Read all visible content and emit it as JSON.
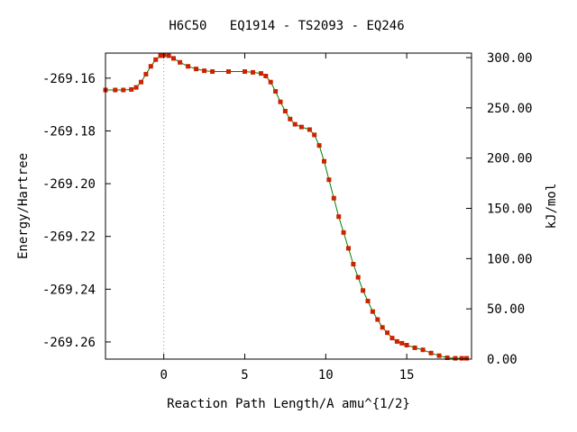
{
  "chart_data": {
    "type": "line",
    "title": "H6C50   EQ1914 - TS2093 - EQ246",
    "xlabel": "Reaction Path Length/A amu^{1/2}",
    "ylabel": "Energy/Hartree",
    "y2label": "kJ/mol",
    "xlim": [
      -3.6,
      19.0
    ],
    "ylim": [
      -269.2665,
      -269.1505
    ],
    "y2lim": [
      0,
      304.5
    ],
    "xticks": [
      0,
      5,
      10,
      15
    ],
    "xtick_labels": [
      "0",
      "5",
      "10",
      "15"
    ],
    "yticks": [
      -269.16,
      -269.18,
      -269.2,
      -269.22,
      -269.24,
      -269.26
    ],
    "ytick_labels": [
      "-269.16",
      "-269.18",
      "-269.20",
      "-269.22",
      "-269.24",
      "-269.26"
    ],
    "y2ticks": [
      0,
      50,
      100,
      150,
      200,
      250,
      300
    ],
    "y2tick_labels": [
      "0.00",
      "50.00",
      "100.00",
      "150.00",
      "200.00",
      "250.00",
      "300.00"
    ],
    "ts_marker_x": 0,
    "grid": false,
    "legend": "none",
    "colors": {
      "line": "#008000",
      "marker": "#cc2200",
      "ts_line": "#999999",
      "frame": "#000000"
    },
    "series": [
      {
        "x": [
          -3.6,
          -3.0,
          -2.5,
          -2.0,
          -1.7,
          -1.4,
          -1.1,
          -0.8,
          -0.5,
          -0.2,
          0.0,
          0.3,
          0.6,
          1.0,
          1.5,
          2.0,
          2.5,
          3.0,
          4.0,
          5.0,
          5.5,
          6.0,
          6.3,
          6.6,
          6.9,
          7.2,
          7.5,
          7.8,
          8.1,
          8.5,
          9.0,
          9.3,
          9.6,
          9.9,
          10.2,
          10.5,
          10.8,
          11.1,
          11.4,
          11.7,
          12.0,
          12.3,
          12.6,
          12.9,
          13.2,
          13.5,
          13.8,
          14.1,
          14.4,
          14.7,
          15.0,
          15.5,
          16.0,
          16.5,
          17.0,
          17.5,
          18.0,
          18.4,
          18.7
        ],
        "y": [
          -269.1645,
          -269.1645,
          -269.1645,
          -269.1643,
          -269.1635,
          -269.1615,
          -269.1585,
          -269.1555,
          -269.153,
          -269.1515,
          -269.1512,
          -269.1515,
          -269.1525,
          -269.154,
          -269.1555,
          -269.1565,
          -269.1572,
          -269.1575,
          -269.1575,
          -269.1575,
          -269.1578,
          -269.1582,
          -269.1592,
          -269.1615,
          -269.165,
          -269.169,
          -269.1725,
          -269.1755,
          -269.1775,
          -269.1785,
          -269.1795,
          -269.1815,
          -269.1855,
          -269.1915,
          -269.1985,
          -269.2055,
          -269.2125,
          -269.2185,
          -269.2245,
          -269.2305,
          -269.2355,
          -269.2405,
          -269.2445,
          -269.2485,
          -269.2515,
          -269.2545,
          -269.2565,
          -269.2585,
          -269.2598,
          -269.2605,
          -269.2612,
          -269.2622,
          -269.263,
          -269.2642,
          -269.2652,
          -269.266,
          -269.2662,
          -269.2662,
          -269.2662
        ]
      }
    ]
  }
}
